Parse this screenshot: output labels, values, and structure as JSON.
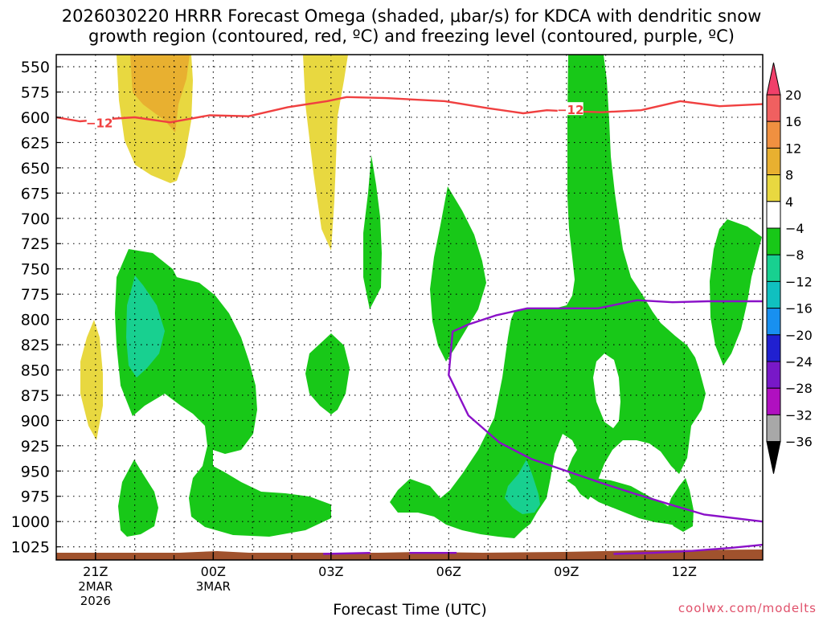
{
  "header": {
    "line1": "2026030220 HRRR Forecast Omega (shaded, μbar/s) for KDCA with dendritic snow",
    "line2": "growth region (contoured, red, ºC) and freezing level (contoured, purple, ºC)"
  },
  "chart_data": {
    "type": "time-height cross section",
    "title": "2026030220 HRRR Forecast Omega (shaded, μbar/s) for KDCA with dendritic snow growth region (contoured, red, ºC) and freezing level (contoured, purple, ºC)",
    "xlabel": "Forecast Time (UTC)",
    "ylabel": "",
    "x_range_hours": [
      0,
      18
    ],
    "y_range_hpa": [
      538,
      1038
    ],
    "y_scale": "linear, inverted (pressure)",
    "grid": true,
    "y_ticks": [
      550,
      575,
      600,
      625,
      650,
      675,
      700,
      725,
      750,
      775,
      800,
      825,
      850,
      875,
      900,
      925,
      950,
      975,
      1000,
      1025
    ],
    "x_ticks": [
      {
        "hour": 1,
        "label": "21Z",
        "sub": [
          "2MAR",
          "2026"
        ]
      },
      {
        "hour": 4,
        "label": "00Z",
        "sub": [
          "3MAR"
        ]
      },
      {
        "hour": 7,
        "label": "03Z",
        "sub": []
      },
      {
        "hour": 10,
        "label": "06Z",
        "sub": []
      },
      {
        "hour": 13,
        "label": "09Z",
        "sub": []
      },
      {
        "hour": 16,
        "label": "12Z",
        "sub": []
      }
    ],
    "colorbar": {
      "labels": [
        "20",
        "16",
        "12",
        "8",
        "4",
        "−4",
        "−8",
        "−12",
        "−16",
        "−20",
        "−24",
        "−28",
        "−32",
        "−36"
      ],
      "colors": [
        "#f0406a",
        "#f06060",
        "#f09040",
        "#e8b030",
        "#e8d840",
        "#ffffff",
        "#18c818",
        "#18d090",
        "#10c0c0",
        "#1890f0",
        "#2020d0",
        "#7818c8",
        "#b010c0",
        "#a8a8a8",
        "#000000"
      ]
    },
    "series": [
      {
        "name": "−12",
        "color": "#f04040",
        "x": [
          0,
          0.6,
          1.2,
          2.0,
          2.9,
          3.9,
          4.9,
          5.9,
          6.9,
          7.4,
          8.4,
          9.9,
          11.0,
          11.9,
          12.5,
          13.0,
          13.9,
          14.9,
          15.9,
          16.9,
          18.0
        ],
        "y": [
          600,
          604,
          602,
          600,
          605,
          598,
          599,
          590,
          584,
          580,
          581,
          584,
          591,
          596,
          593,
          594,
          595,
          593,
          584,
          589,
          587
        ],
        "label_positions": [
          [
            1.1,
            606
          ],
          [
            13.1,
            593
          ]
        ]
      },
      {
        "name": "freezing level",
        "color": "#8a10c8",
        "x": [
          18.0,
          16.6,
          15.7,
          14.8,
          13.8,
          13.0,
          12.0,
          11.2,
          10.5,
          10.1,
          10.0,
          10.5,
          11.3,
          12.1,
          13.0,
          13.9,
          14.7,
          15.8,
          16.5,
          18.0
        ],
        "y": [
          782,
          782,
          783,
          781,
          789,
          789,
          789,
          796,
          805,
          812,
          855,
          895,
          922,
          938,
          950,
          962,
          972,
          985,
          993,
          1000
        ],
        "segments_near_surface": [
          [
            [
              6.8,
              1032
            ],
            [
              8.0,
              1031
            ]
          ],
          [
            [
              9.0,
              1031
            ],
            [
              10.2,
              1031
            ]
          ],
          [
            [
              14.2,
              1032
            ],
            [
              15.2,
              1031
            ],
            [
              16.2,
              1029
            ],
            [
              17.2,
              1026
            ],
            [
              18.0,
              1023
            ]
          ]
        ]
      }
    ],
    "annotations": [
      "−12",
      "−12"
    ],
    "terrain_color": "#a0522d"
  },
  "axes": {
    "xlabel": "Forecast Time (UTC)"
  },
  "credit": "coolwx.com/modelts",
  "colors": {
    "omega_pos_4": "#e8d840",
    "omega_pos_8": "#e8b030",
    "omega_neg_4": "#18c818",
    "omega_neg_8": "#18d090",
    "dsg_contour": "#f04040",
    "freezing_contour": "#8a10c8",
    "terrain": "#a0522d"
  }
}
